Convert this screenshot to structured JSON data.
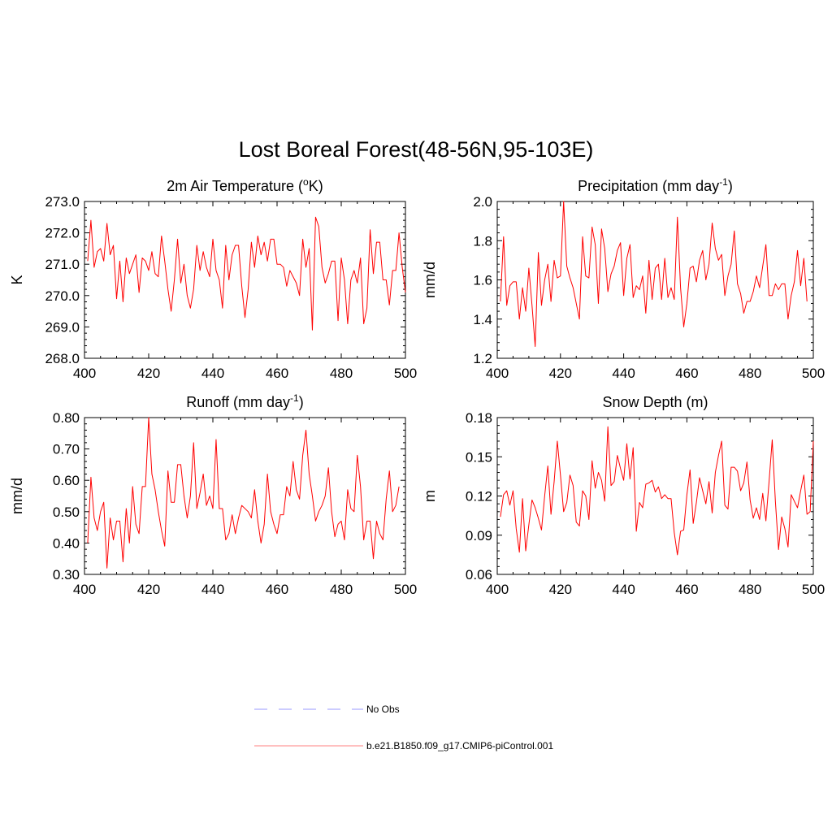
{
  "title": "Lost Boreal Forest(48-56N,95-103E)",
  "legend": [
    {
      "label": "No Obs",
      "color": "#9999ff",
      "style": "dashed"
    },
    {
      "label": "b.e21.B1850.f09_g17.CMIP6-piControl.001",
      "color": "#ff8080",
      "style": "solid"
    }
  ],
  "chart_data": [
    {
      "type": "line",
      "title_main": "2m Air Temperature (",
      "title_sup": "o",
      "title_end": "K)",
      "ylabel": "K",
      "xlim": [
        400,
        500
      ],
      "ylim": [
        268.0,
        273.0
      ],
      "xticks": [
        "400",
        "420",
        "440",
        "460",
        "480",
        "500"
      ],
      "yticks": [
        "268.0",
        "269.0",
        "270.0",
        "271.0",
        "272.0",
        "273.0"
      ],
      "series": [
        {
          "name": "b.e21.B1850.f09_g17.CMIP6-piControl.001",
          "color": "#ff0000",
          "x_start": 401,
          "values": [
            271.1,
            272.4,
            270.9,
            271.4,
            271.5,
            271.1,
            272.3,
            271.3,
            271.6,
            269.9,
            271.1,
            269.8,
            271.2,
            270.7,
            271.0,
            271.3,
            270.1,
            271.2,
            271.1,
            270.8,
            271.4,
            270.7,
            270.6,
            271.9,
            271.1,
            270.2,
            269.5,
            270.5,
            271.8,
            270.4,
            271.0,
            270.0,
            269.6,
            270.2,
            271.6,
            270.8,
            271.4,
            270.9,
            270.6,
            271.8,
            270.8,
            270.5,
            269.6,
            271.6,
            270.5,
            271.3,
            271.6,
            271.6,
            270.3,
            269.3,
            270.2,
            271.7,
            270.9,
            271.9,
            271.3,
            271.7,
            271.1,
            271.8,
            271.8,
            271.0,
            271.0,
            270.9,
            270.3,
            270.8,
            270.6,
            270.4,
            270.0,
            271.8,
            270.9,
            271.5,
            268.9,
            272.5,
            272.2,
            270.9,
            270.4,
            270.7,
            271.1,
            271.1,
            269.2,
            271.2,
            270.5,
            269.1,
            270.5,
            270.8,
            270.4,
            271.2,
            269.1,
            269.6,
            272.1,
            270.7,
            271.7,
            271.7,
            270.5,
            270.5,
            269.7,
            270.8,
            270.8,
            272.0,
            270.9,
            270.1
          ]
        }
      ]
    },
    {
      "type": "line",
      "title_main": "Precipitation (mm day",
      "title_sup": "-1",
      "title_end": ")",
      "ylabel": "mm/d",
      "xlim": [
        400,
        500
      ],
      "ylim": [
        1.2,
        2.0
      ],
      "xticks": [
        "400",
        "420",
        "440",
        "460",
        "480",
        "500"
      ],
      "yticks": [
        "1.2",
        "1.4",
        "1.6",
        "1.8",
        "2.0"
      ],
      "series": [
        {
          "name": "b.e21.B1850.f09_g17.CMIP6-piControl.001",
          "color": "#ff0000",
          "x_start": 401,
          "values": [
            1.49,
            1.82,
            1.47,
            1.57,
            1.59,
            1.59,
            1.4,
            1.56,
            1.44,
            1.66,
            1.47,
            1.26,
            1.74,
            1.47,
            1.6,
            1.68,
            1.49,
            1.7,
            1.61,
            1.62,
            2.0,
            1.67,
            1.61,
            1.56,
            1.48,
            1.4,
            1.82,
            1.62,
            1.61,
            1.87,
            1.78,
            1.48,
            1.86,
            1.76,
            1.54,
            1.63,
            1.67,
            1.75,
            1.79,
            1.52,
            1.71,
            1.78,
            1.51,
            1.57,
            1.55,
            1.62,
            1.43,
            1.7,
            1.5,
            1.66,
            1.68,
            1.5,
            1.71,
            1.51,
            1.56,
            1.5,
            1.92,
            1.56,
            1.36,
            1.48,
            1.66,
            1.67,
            1.59,
            1.7,
            1.75,
            1.6,
            1.68,
            1.89,
            1.76,
            1.7,
            1.73,
            1.52,
            1.62,
            1.68,
            1.85,
            1.58,
            1.53,
            1.43,
            1.49,
            1.49,
            1.54,
            1.62,
            1.56,
            1.67,
            1.78,
            1.52,
            1.52,
            1.58,
            1.55,
            1.58,
            1.58,
            1.4,
            1.52,
            1.59,
            1.75,
            1.57,
            1.71,
            1.49
          ]
        }
      ]
    },
    {
      "type": "line",
      "title_main": "Runoff (mm day",
      "title_sup": "-1",
      "title_end": ")",
      "ylabel": "mm/d",
      "xlim": [
        400,
        500
      ],
      "ylim": [
        0.3,
        0.8
      ],
      "xticks": [
        "400",
        "420",
        "440",
        "460",
        "480",
        "500"
      ],
      "yticks": [
        "0.30",
        "0.40",
        "0.50",
        "0.60",
        "0.70",
        "0.80"
      ],
      "series": [
        {
          "name": "b.e21.B1850.f09_g17.CMIP6-piControl.001",
          "color": "#ff0000",
          "x_start": 401,
          "values": [
            0.4,
            0.61,
            0.48,
            0.44,
            0.5,
            0.53,
            0.32,
            0.48,
            0.41,
            0.47,
            0.47,
            0.34,
            0.51,
            0.4,
            0.58,
            0.46,
            0.43,
            0.58,
            0.58,
            0.8,
            0.62,
            0.57,
            0.5,
            0.44,
            0.39,
            0.63,
            0.53,
            0.53,
            0.65,
            0.65,
            0.55,
            0.48,
            0.55,
            0.72,
            0.51,
            0.56,
            0.62,
            0.52,
            0.55,
            0.51,
            0.73,
            0.51,
            0.51,
            0.41,
            0.43,
            0.49,
            0.43,
            0.48,
            0.52,
            0.51,
            0.5,
            0.48,
            0.57,
            0.47,
            0.4,
            0.46,
            0.62,
            0.5,
            0.46,
            0.43,
            0.49,
            0.49,
            0.58,
            0.55,
            0.66,
            0.57,
            0.54,
            0.68,
            0.76,
            0.62,
            0.55,
            0.47,
            0.5,
            0.52,
            0.55,
            0.64,
            0.5,
            0.42,
            0.46,
            0.47,
            0.41,
            0.57,
            0.51,
            0.5,
            0.68,
            0.58,
            0.41,
            0.47,
            0.47,
            0.35,
            0.47,
            0.43,
            0.41,
            0.54,
            0.63,
            0.5,
            0.52,
            0.58
          ]
        }
      ]
    },
    {
      "type": "line",
      "title_main": "Snow Depth (m)",
      "title_sup": "",
      "title_end": "",
      "ylabel": "m",
      "xlim": [
        400,
        500
      ],
      "ylim": [
        0.06,
        0.18
      ],
      "xticks": [
        "400",
        "420",
        "440",
        "460",
        "480",
        "500"
      ],
      "yticks": [
        "0.06",
        "0.09",
        "0.12",
        "0.15",
        "0.18"
      ],
      "series": [
        {
          "name": "b.e21.B1850.f09_g17.CMIP6-piControl.001",
          "color": "#ff0000",
          "x_start": 401,
          "values": [
            0.104,
            0.121,
            0.124,
            0.113,
            0.124,
            0.095,
            0.077,
            0.118,
            0.078,
            0.098,
            0.117,
            0.111,
            0.103,
            0.094,
            0.12,
            0.143,
            0.106,
            0.131,
            0.162,
            0.136,
            0.108,
            0.115,
            0.136,
            0.128,
            0.1,
            0.097,
            0.124,
            0.12,
            0.102,
            0.147,
            0.126,
            0.138,
            0.132,
            0.116,
            0.173,
            0.128,
            0.131,
            0.151,
            0.141,
            0.132,
            0.16,
            0.133,
            0.157,
            0.093,
            0.115,
            0.111,
            0.129,
            0.13,
            0.132,
            0.123,
            0.127,
            0.118,
            0.121,
            0.118,
            0.118,
            0.092,
            0.075,
            0.093,
            0.094,
            0.121,
            0.14,
            0.099,
            0.115,
            0.134,
            0.124,
            0.114,
            0.131,
            0.107,
            0.138,
            0.151,
            0.162,
            0.113,
            0.11,
            0.142,
            0.142,
            0.139,
            0.124,
            0.13,
            0.146,
            0.117,
            0.103,
            0.111,
            0.102,
            0.122,
            0.101,
            0.131,
            0.163,
            0.116,
            0.079,
            0.104,
            0.095,
            0.081,
            0.121,
            0.116,
            0.111,
            0.124,
            0.136,
            0.106,
            0.108,
            0.162
          ]
        }
      ]
    }
  ]
}
